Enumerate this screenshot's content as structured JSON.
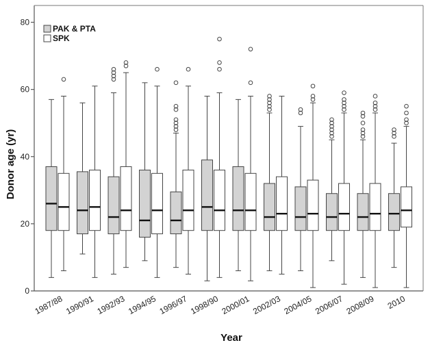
{
  "chart_data": {
    "type": "boxplot",
    "title": "",
    "xlabel": "Year",
    "ylabel": "Donor age (yr)",
    "ylim": [
      0,
      85
    ],
    "y_ticks": [
      0,
      20,
      40,
      60,
      80
    ],
    "grid": false,
    "legend_position": "top-left",
    "x_tick_labels": [
      "1987/88",
      "1990/91",
      "1992/93",
      "1994/95",
      "1996/97",
      "1998/90",
      "2000/01",
      "2002/03",
      "2004/05",
      "2006/07",
      "2008/09",
      "2010"
    ],
    "series": [
      {
        "name": "PAK & PTA",
        "color": "#d3d3d3",
        "boxes": [
          {
            "min": 4,
            "q1": 18,
            "median": 26,
            "q3": 37,
            "max": 57,
            "outliers": []
          },
          {
            "min": 11,
            "q1": 17,
            "median": 24,
            "q3": 35.5,
            "max": 56,
            "outliers": []
          },
          {
            "min": 5,
            "q1": 17,
            "median": 22,
            "q3": 34,
            "max": 59,
            "outliers": [
              63,
              64,
              65,
              66
            ]
          },
          {
            "min": 9,
            "q1": 16,
            "median": 21,
            "q3": 36,
            "max": 62,
            "outliers": []
          },
          {
            "min": 7,
            "q1": 17,
            "median": 21,
            "q3": 29.5,
            "max": 47,
            "outliers": [
              48,
              49,
              50,
              51,
              54,
              55,
              62
            ]
          },
          {
            "min": 3,
            "q1": 18,
            "median": 25,
            "q3": 39,
            "max": 58,
            "outliers": []
          },
          {
            "min": 6,
            "q1": 18,
            "median": 24,
            "q3": 37,
            "max": 57,
            "outliers": []
          },
          {
            "min": 6,
            "q1": 18,
            "median": 22,
            "q3": 32,
            "max": 53,
            "outliers": [
              54,
              55,
              56,
              57,
              58
            ]
          },
          {
            "min": 6,
            "q1": 18,
            "median": 22,
            "q3": 31,
            "max": 49,
            "outliers": [
              53,
              54
            ]
          },
          {
            "min": 9,
            "q1": 18,
            "median": 22,
            "q3": 29,
            "max": 45,
            "outliers": [
              46,
              47,
              48,
              49,
              50,
              51
            ]
          },
          {
            "min": 4,
            "q1": 18,
            "median": 22,
            "q3": 29,
            "max": 45,
            "outliers": [
              46,
              47,
              48,
              50,
              52,
              53
            ]
          },
          {
            "min": 7,
            "q1": 18,
            "median": 23,
            "q3": 29,
            "max": 44,
            "outliers": [
              46,
              47,
              48
            ]
          }
        ]
      },
      {
        "name": "SPK",
        "color": "#ffffff",
        "boxes": [
          {
            "min": 6,
            "q1": 18,
            "median": 25,
            "q3": 35,
            "max": 58,
            "outliers": [
              63
            ]
          },
          {
            "min": 4,
            "q1": 18,
            "median": 25,
            "q3": 36,
            "max": 61,
            "outliers": []
          },
          {
            "min": 7,
            "q1": 18,
            "median": 24,
            "q3": 37,
            "max": 65,
            "outliers": [
              67,
              68
            ]
          },
          {
            "min": 4,
            "q1": 17,
            "median": 24,
            "q3": 35,
            "max": 61,
            "outliers": [
              66
            ]
          },
          {
            "min": 5,
            "q1": 18,
            "median": 24,
            "q3": 36,
            "max": 61,
            "outliers": [
              66
            ]
          },
          {
            "min": 4,
            "q1": 18,
            "median": 24,
            "q3": 36,
            "max": 59,
            "outliers": [
              66,
              68,
              75
            ]
          },
          {
            "min": 3,
            "q1": 18,
            "median": 24,
            "q3": 35,
            "max": 58,
            "outliers": [
              62,
              72
            ]
          },
          {
            "min": 5,
            "q1": 18,
            "median": 23,
            "q3": 34,
            "max": 58,
            "outliers": []
          },
          {
            "min": 1,
            "q1": 18,
            "median": 23,
            "q3": 33,
            "max": 56,
            "outliers": [
              57,
              58,
              61
            ]
          },
          {
            "min": 2,
            "q1": 18,
            "median": 23,
            "q3": 32,
            "max": 53,
            "outliers": [
              54,
              55,
              56,
              57,
              59
            ]
          },
          {
            "min": 1,
            "q1": 18,
            "median": 23,
            "q3": 32,
            "max": 53,
            "outliers": [
              54,
              55,
              56,
              58
            ]
          },
          {
            "min": 1,
            "q1": 19,
            "median": 24,
            "q3": 31,
            "max": 49,
            "outliers": [
              50,
              51,
              53,
              55
            ]
          }
        ]
      }
    ]
  }
}
